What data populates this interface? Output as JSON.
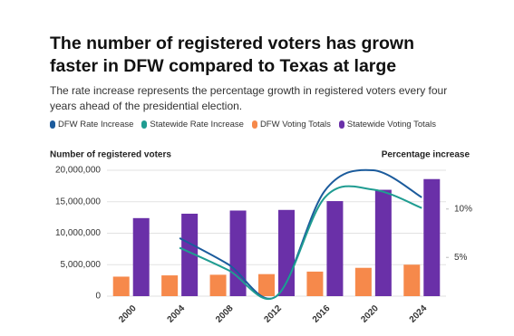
{
  "chart_data": {
    "type": "bar",
    "title": "The number of registered voters has grown faster in DFW compared to Texas at large",
    "subtitle": "The rate increase represents the percentage growth in registered voters every four years ahead of the presidential election.",
    "ylabel": "Number of registered voters",
    "y2label": "Percentage increase",
    "categories": [
      "2000",
      "2004",
      "2008",
      "2012",
      "2016",
      "2020",
      "2024"
    ],
    "series": [
      {
        "name": "DFW Rate Increase",
        "type": "line",
        "axis": "y2",
        "color": "#1b5b9c",
        "values": [
          null,
          7.0,
          4.3,
          1.0,
          11.9,
          14.0,
          11.2
        ]
      },
      {
        "name": "Statewide Rate Increase",
        "type": "line",
        "axis": "y2",
        "color": "#1f9c91",
        "values": [
          null,
          6.0,
          3.7,
          1.0,
          11.2,
          12.0,
          10.1
        ]
      },
      {
        "name": "DFW Voting Totals",
        "type": "bar",
        "color": "#f6894b",
        "values": [
          3100000,
          3300000,
          3400000,
          3500000,
          3900000,
          4500000,
          5000000
        ]
      },
      {
        "name": "Statewide Voting Totals",
        "type": "bar",
        "color": "#6a30a8",
        "values": [
          12400000,
          13100000,
          13600000,
          13700000,
          15100000,
          16900000,
          18600000
        ]
      }
    ],
    "ylim": [
      0,
      20000000
    ],
    "yticks": [
      0,
      {
        "value": 5000000,
        "label": "5,000,000"
      },
      {
        "value": 10000000,
        "label": "10,000,000"
      },
      {
        "value": 15000000,
        "label": "15,000,000"
      },
      {
        "value": 20000000,
        "label": "20,000,000"
      }
    ],
    "y2lim": [
      1,
      14
    ],
    "y2ticks": [
      {
        "value": 5,
        "label": "5%"
      },
      {
        "value": 10,
        "label": "10%"
      }
    ],
    "grid": true
  }
}
